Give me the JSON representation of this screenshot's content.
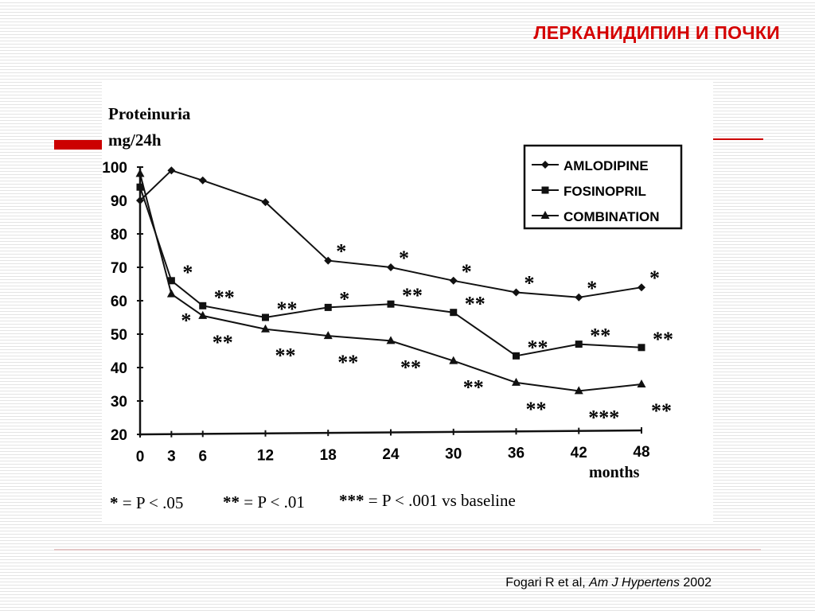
{
  "slide": {
    "title": "ЛЕРКАНИДИПИН И ПОЧКИ",
    "citation": {
      "authors": "Fogari R et al,",
      "journal": "Am J Hypertens",
      "year": "2002"
    }
  },
  "colors": {
    "title": "#d40000",
    "accent_bar": "#cc0000",
    "lines": "#111111"
  },
  "chart_data": {
    "type": "line",
    "ylabel": [
      "Proteinuria",
      "mg/24h"
    ],
    "xlabel": "months",
    "x": [
      0,
      3,
      6,
      12,
      18,
      24,
      30,
      36,
      42,
      48
    ],
    "x_ticks": [
      "0",
      "3",
      "6",
      "12",
      "18",
      "24",
      "30",
      "36",
      "42",
      "48"
    ],
    "y_ticks": [
      "20",
      "30",
      "40",
      "50",
      "60",
      "70",
      "80",
      "90",
      "100"
    ],
    "ylim": [
      20,
      100
    ],
    "grid": false,
    "legend_position": "top-right",
    "series": [
      {
        "name": "AMLODIPINE",
        "marker": "diamond",
        "values": [
          90,
          99,
          96,
          89.5,
          72,
          70,
          66,
          62.5,
          61,
          64
        ],
        "significance": [
          "",
          "",
          "",
          "",
          "*",
          "*",
          "*",
          "*",
          "*",
          "*"
        ]
      },
      {
        "name": "FOSINOPRIL",
        "marker": "square",
        "values": [
          94,
          66,
          58.5,
          55,
          58,
          59,
          56.5,
          43.5,
          47,
          46
        ],
        "significance": [
          "",
          "*",
          "**",
          "**",
          "*",
          "**",
          "**",
          "**",
          "**",
          "**"
        ]
      },
      {
        "name": "COMBINATION",
        "marker": "triangle",
        "values": [
          98,
          62,
          55.5,
          51.5,
          49.5,
          48,
          42,
          35.5,
          33,
          35
        ],
        "significance": [
          "",
          "*",
          "**",
          "**",
          "**",
          "**",
          "**",
          "**",
          "***",
          "**"
        ]
      }
    ],
    "footnote": {
      "one": {
        "stars": "*",
        "text": " = P < .05"
      },
      "two": {
        "stars": "**",
        "text": " = P < .01"
      },
      "three": {
        "stars": "***",
        "text": " = P < .001 vs baseline"
      }
    }
  }
}
